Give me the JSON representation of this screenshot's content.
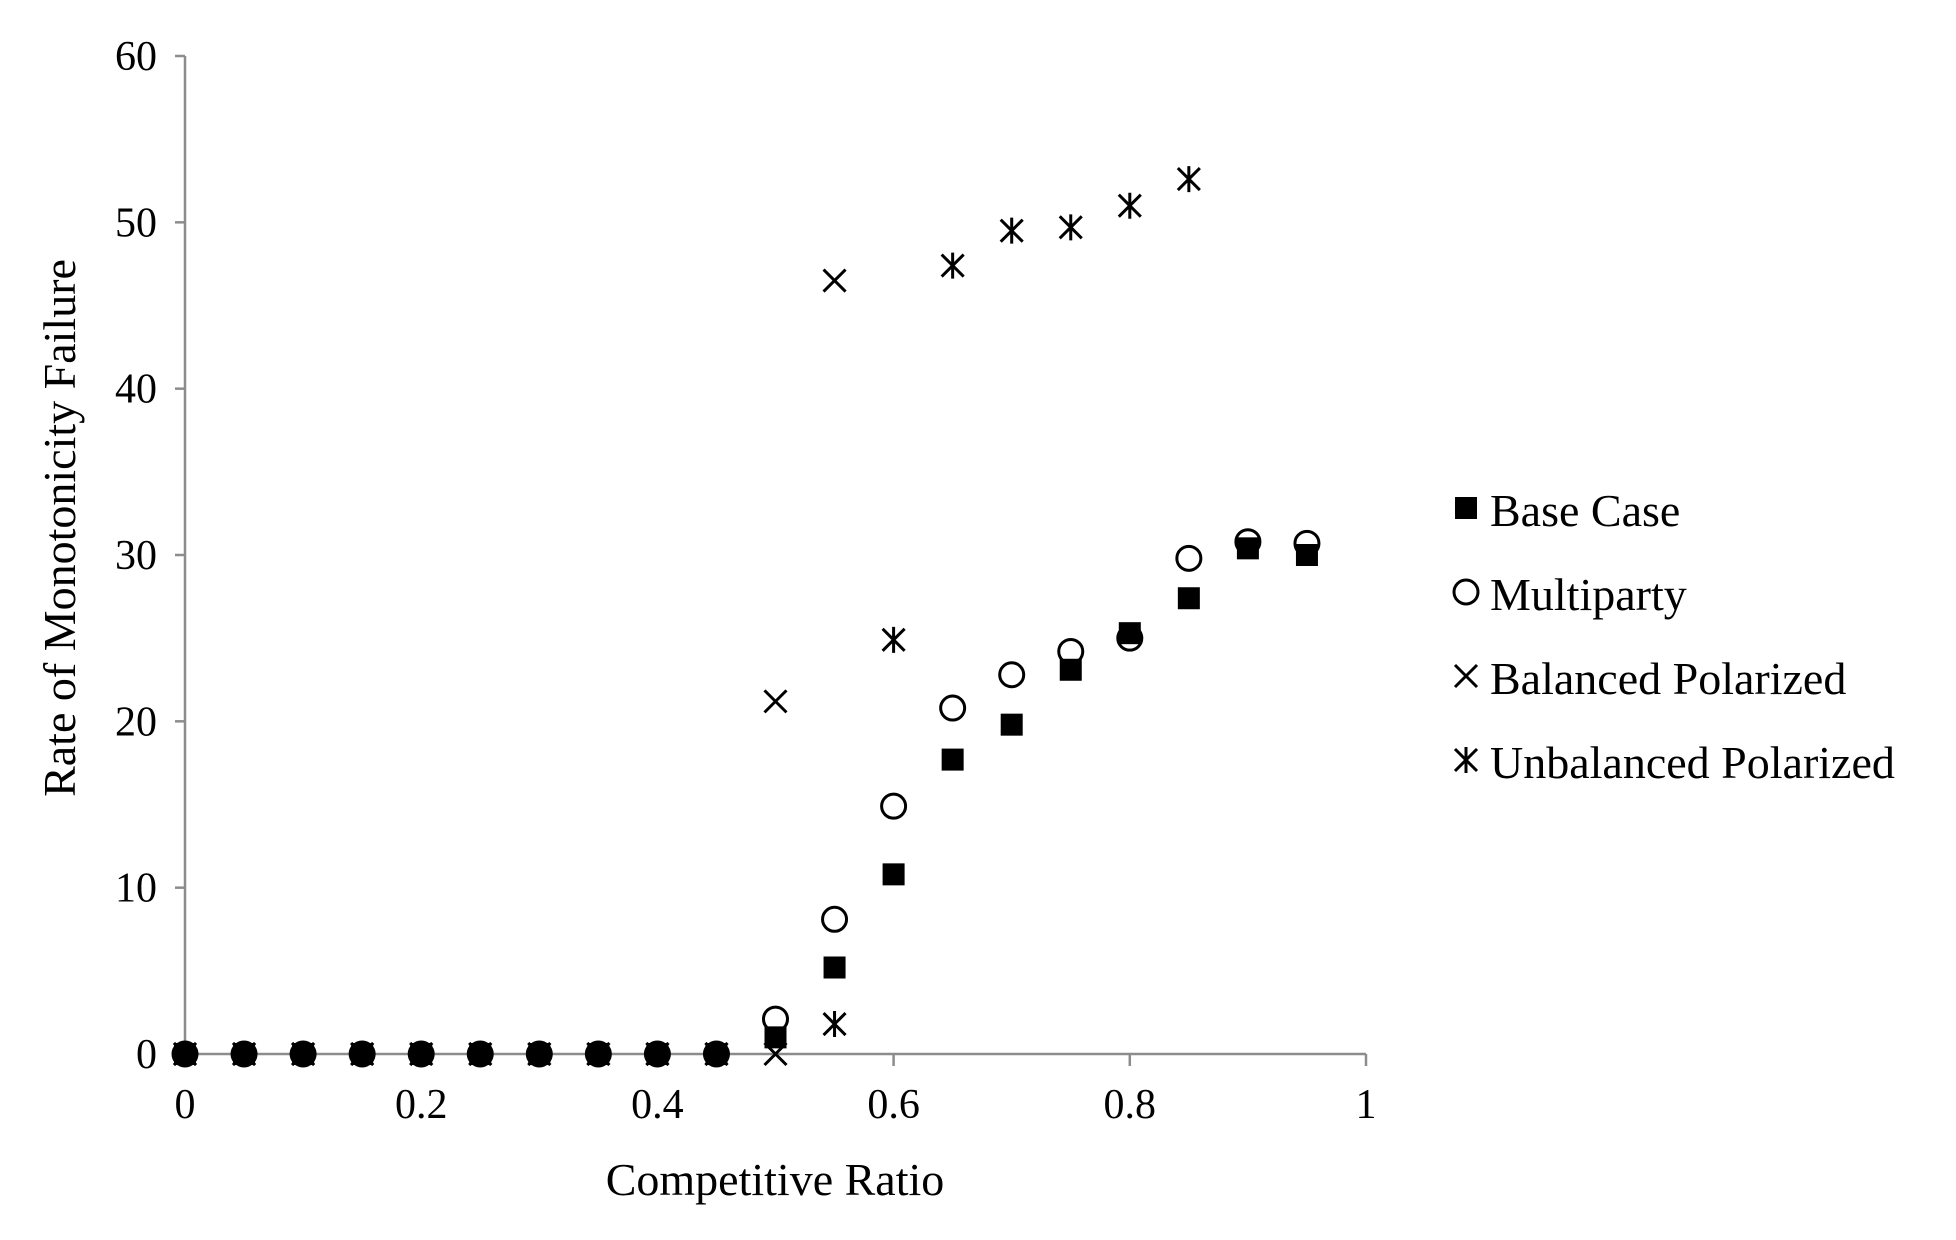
{
  "chart_data": {
    "type": "scatter",
    "title": "",
    "xlabel": "Competitive Ratio",
    "ylabel": "Rate of Monotonicity Failure",
    "xlim": [
      0,
      1
    ],
    "ylim": [
      0,
      60
    ],
    "xticks": [
      0,
      0.2,
      0.4,
      0.6,
      0.8,
      1
    ],
    "xtick_labels": [
      "0",
      "0.2",
      "0.4",
      "0.6",
      "0.8",
      "1"
    ],
    "yticks": [
      0,
      10,
      20,
      30,
      40,
      50,
      60
    ],
    "ytick_labels": [
      "0",
      "10",
      "20",
      "30",
      "40",
      "50",
      "60"
    ],
    "grid": false,
    "legend_position": "right",
    "series": [
      {
        "name": "Base Case",
        "marker": "filled-square",
        "color": "#000000",
        "x": [
          0,
          0.05,
          0.1,
          0.15,
          0.2,
          0.25,
          0.3,
          0.35,
          0.4,
          0.45,
          0.5,
          0.55,
          0.6,
          0.65,
          0.7,
          0.75,
          0.8,
          0.85,
          0.9,
          0.95
        ],
        "y": [
          0,
          0,
          0,
          0,
          0,
          0,
          0,
          0,
          0,
          0,
          1.0,
          5.2,
          10.8,
          17.7,
          19.8,
          23.1,
          25.3,
          27.4,
          30.4,
          30.0
        ]
      },
      {
        "name": "Multiparty",
        "marker": "open-circle",
        "color": "#000000",
        "x": [
          0,
          0.05,
          0.1,
          0.15,
          0.2,
          0.25,
          0.3,
          0.35,
          0.4,
          0.45,
          0.5,
          0.55,
          0.6,
          0.65,
          0.7,
          0.75,
          0.8,
          0.85,
          0.9,
          0.95
        ],
        "y": [
          0,
          0,
          0,
          0,
          0,
          0,
          0,
          0,
          0,
          0,
          2.1,
          8.1,
          14.9,
          20.8,
          22.8,
          24.2,
          25.0,
          29.8,
          30.8,
          30.7
        ]
      },
      {
        "name": "Balanced Polarized",
        "marker": "x",
        "color": "#000000",
        "x": [
          0,
          0.05,
          0.1,
          0.15,
          0.2,
          0.25,
          0.3,
          0.35,
          0.4,
          0.45,
          0.5,
          0.5,
          0.55
        ],
        "y": [
          0,
          0,
          0,
          0,
          0,
          0,
          0,
          0,
          0,
          0,
          0,
          21.2,
          46.5
        ]
      },
      {
        "name": "Unbalanced Polarized",
        "marker": "asterisk",
        "color": "#000000",
        "x": [
          0,
          0.05,
          0.1,
          0.15,
          0.2,
          0.25,
          0.3,
          0.35,
          0.4,
          0.45,
          0.55,
          0.6,
          0.65,
          0.7,
          0.75,
          0.8,
          0.85
        ],
        "y": [
          0,
          0,
          0,
          0,
          0,
          0,
          0,
          0,
          0,
          0,
          1.8,
          24.9,
          47.4,
          49.5,
          49.7,
          51.0,
          52.6
        ]
      }
    ]
  }
}
